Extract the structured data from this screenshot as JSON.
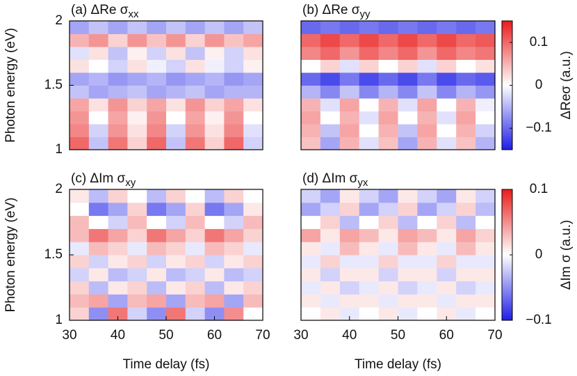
{
  "chart_data": [
    {
      "type": "heatmap",
      "title": "(a) ΔRe σ",
      "title_sub": "xx",
      "ylabel": "Photon energy (eV)",
      "x": [
        32,
        36,
        40,
        44,
        48,
        52,
        56,
        60,
        64,
        68
      ],
      "y": [
        1.05,
        1.15,
        1.25,
        1.35,
        1.45,
        1.55,
        1.65,
        1.75,
        1.85,
        1.95
      ],
      "xlim": [
        30,
        70
      ],
      "ylim": [
        1,
        2
      ],
      "yticks": [
        1,
        1.5,
        2
      ],
      "zlim": [
        -0.15,
        0.15
      ],
      "cmap": [
        "#1e1ee6",
        "#ffffff",
        "#e81c1c"
      ],
      "z": [
        [
          0.1,
          -0.04,
          0.09,
          0.03,
          0.1,
          -0.04,
          0.09,
          0.03,
          0.1,
          -0.03
        ],
        [
          0.08,
          -0.03,
          0.07,
          0.02,
          0.08,
          -0.03,
          0.07,
          0.02,
          0.08,
          -0.02
        ],
        [
          0.07,
          0,
          0.06,
          0.01,
          0.07,
          0,
          0.06,
          0.01,
          0.07,
          0
        ],
        [
          0.06,
          0.02,
          0.07,
          0.03,
          0.06,
          0.02,
          0.07,
          0.03,
          0.06,
          0.02
        ],
        [
          -0.04,
          -0.06,
          -0.05,
          -0.04,
          -0.06,
          -0.05,
          -0.04,
          -0.06,
          -0.05,
          -0.05
        ],
        [
          -0.06,
          -0.05,
          -0.07,
          -0.06,
          -0.05,
          -0.07,
          -0.06,
          -0.05,
          -0.07,
          -0.06
        ],
        [
          0.02,
          0,
          -0.03,
          0.02,
          -0.01,
          -0.03,
          0.02,
          -0.01,
          -0.03,
          0.01
        ],
        [
          -0.02,
          0.02,
          -0.04,
          0.01,
          -0.03,
          0.02,
          -0.04,
          0.01,
          -0.03,
          0.02
        ],
        [
          0.05,
          0.07,
          0.03,
          0.07,
          0.04,
          0.07,
          0.03,
          0.07,
          0.04,
          0.06
        ],
        [
          -0.06,
          -0.04,
          -0.06,
          -0.04,
          -0.06,
          -0.04,
          -0.06,
          -0.04,
          -0.06,
          -0.04
        ]
      ]
    },
    {
      "type": "heatmap",
      "title": "(b) ΔRe σ",
      "title_sub": "yy",
      "x": [
        32,
        36,
        40,
        44,
        48,
        52,
        56,
        60,
        64,
        68
      ],
      "y": [
        1.05,
        1.15,
        1.25,
        1.35,
        1.45,
        1.55,
        1.65,
        1.75,
        1.85,
        1.95
      ],
      "xlim": [
        30,
        70
      ],
      "ylim": [
        1,
        2
      ],
      "zlim": [
        -0.15,
        0.15
      ],
      "cmap": [
        "#1e1ee6",
        "#ffffff",
        "#e81c1c"
      ],
      "colorbar": {
        "label": "ΔReσ (a.u.)",
        "ticks": [
          {
            "value": -0.1,
            "label": "−0.1"
          },
          0,
          0.1
        ]
      },
      "z": [
        [
          0.04,
          -0.06,
          0.05,
          -0.02,
          0.04,
          -0.06,
          0.05,
          -0.02,
          0.04,
          -0.05
        ],
        [
          0.05,
          -0.04,
          0.06,
          0,
          0.05,
          -0.04,
          0.06,
          0,
          0.05,
          -0.03
        ],
        [
          0.06,
          0,
          0.05,
          -0.02,
          0.06,
          0,
          0.05,
          -0.02,
          0.06,
          0
        ],
        [
          0.05,
          -0.02,
          0.06,
          0,
          0.05,
          -0.02,
          0.06,
          0,
          0.05,
          -0.01
        ],
        [
          -0.05,
          -0.08,
          -0.04,
          -0.08,
          -0.05,
          -0.08,
          -0.04,
          -0.08,
          -0.05,
          -0.07
        ],
        [
          -0.1,
          -0.12,
          -0.09,
          -0.12,
          -0.1,
          -0.12,
          -0.09,
          -0.12,
          -0.1,
          -0.11
        ],
        [
          0,
          0.03,
          -0.02,
          0.03,
          0,
          0.03,
          -0.02,
          0.03,
          0,
          0.02
        ],
        [
          0.08,
          0.1,
          0.07,
          0.1,
          0.08,
          0.1,
          0.07,
          0.1,
          0.08,
          0.09
        ],
        [
          0.1,
          0.12,
          0.1,
          0.12,
          0.1,
          0.12,
          0.1,
          0.12,
          0.1,
          0.11
        ],
        [
          -0.1,
          -0.09,
          -0.1,
          -0.09,
          -0.1,
          -0.09,
          -0.1,
          -0.09,
          -0.1,
          -0.09
        ]
      ]
    },
    {
      "type": "heatmap",
      "title": "(c) ΔIm σ",
      "title_sub": "xy",
      "ylabel": "Photon energy (eV)",
      "xlabel": "Time delay (fs)",
      "x": [
        32,
        36,
        40,
        44,
        48,
        52,
        56,
        60,
        64,
        68
      ],
      "y": [
        1.05,
        1.15,
        1.25,
        1.35,
        1.45,
        1.55,
        1.65,
        1.75,
        1.85,
        1.95
      ],
      "xlim": [
        30,
        70
      ],
      "ylim": [
        1,
        2
      ],
      "xticks": [
        30,
        40,
        50,
        60,
        70
      ],
      "yticks": [
        1,
        1.5,
        2
      ],
      "zlim": [
        -0.1,
        0.1
      ],
      "cmap": [
        "#1e1ee6",
        "#ffffff",
        "#e81c1c"
      ],
      "z": [
        [
          0.02,
          -0.05,
          0.06,
          -0.02,
          -0.05,
          0.06,
          -0.02,
          -0.05,
          0.05,
          0
        ],
        [
          0.03,
          0.04,
          -0.04,
          0.03,
          0.04,
          -0.04,
          0.03,
          0.04,
          -0.04,
          0.03
        ],
        [
          0.02,
          -0.03,
          0.01,
          0.02,
          -0.03,
          0.01,
          0.02,
          -0.03,
          0.01,
          0.02
        ],
        [
          -0.02,
          0.01,
          -0.03,
          -0.02,
          0.01,
          -0.03,
          -0.02,
          0.01,
          -0.03,
          -0.02
        ],
        [
          0.02,
          -0.02,
          0.01,
          0.02,
          -0.02,
          0.01,
          0.02,
          -0.02,
          0.01,
          0.02
        ],
        [
          -0.01,
          0.03,
          0.02,
          -0.01,
          0.03,
          0.02,
          -0.01,
          0.03,
          0.02,
          -0.01
        ],
        [
          0.03,
          0.06,
          0.04,
          0.02,
          0.06,
          0.04,
          0.02,
          0.06,
          0.04,
          0.02
        ],
        [
          0.03,
          0,
          -0.02,
          0.03,
          0,
          -0.02,
          0.03,
          0,
          -0.02,
          0.03
        ],
        [
          0,
          -0.06,
          -0.04,
          0.02,
          -0.06,
          -0.04,
          0.02,
          -0.06,
          -0.04,
          0.01
        ],
        [
          0.01,
          -0.03,
          0.02,
          0,
          -0.03,
          0.02,
          0,
          -0.03,
          0.02,
          0
        ]
      ]
    },
    {
      "type": "heatmap",
      "title": "(d) ΔIm σ",
      "title_sub": "yx",
      "xlabel": "Time delay (fs)",
      "x": [
        32,
        36,
        40,
        44,
        48,
        52,
        56,
        60,
        64,
        68
      ],
      "y": [
        1.05,
        1.15,
        1.25,
        1.35,
        1.45,
        1.55,
        1.65,
        1.75,
        1.85,
        1.95
      ],
      "xlim": [
        30,
        70
      ],
      "ylim": [
        1,
        2
      ],
      "xticks": [
        30,
        40,
        50,
        60,
        70
      ],
      "zlim": [
        -0.1,
        0.1
      ],
      "cmap": [
        "#1e1ee6",
        "#ffffff",
        "#e81c1c"
      ],
      "colorbar": {
        "label": "ΔIm σ (a.u.)",
        "ticks": [
          {
            "value": -0.1,
            "label": "−0.1"
          },
          0,
          0.1
        ]
      },
      "z": [
        [
          0,
          0.01,
          -0.01,
          0,
          0.01,
          -0.01,
          0,
          0.01,
          -0.01,
          0
        ],
        [
          0.01,
          -0.01,
          0.01,
          0.01,
          -0.01,
          0.01,
          0.01,
          -0.01,
          0.01,
          0.01
        ],
        [
          -0.01,
          0.01,
          -0.02,
          -0.01,
          0.01,
          -0.02,
          -0.01,
          0.01,
          -0.02,
          -0.01
        ],
        [
          0.01,
          -0.02,
          0.01,
          0.01,
          -0.02,
          0.01,
          0.01,
          -0.02,
          0.01,
          0.01
        ],
        [
          -0.01,
          0.02,
          -0.01,
          -0.01,
          0.02,
          -0.01,
          -0.01,
          0.02,
          -0.01,
          -0.01
        ],
        [
          0.01,
          -0.01,
          0.03,
          0.01,
          -0.01,
          0.03,
          0.01,
          -0.01,
          0.03,
          0.01
        ],
        [
          0.04,
          0.01,
          0.04,
          0.03,
          0.01,
          0.04,
          0.03,
          0.01,
          0.04,
          0.02
        ],
        [
          0,
          0.02,
          -0.03,
          0,
          0.02,
          -0.03,
          0,
          0.02,
          -0.03,
          0
        ],
        [
          -0.04,
          -0.02,
          0.02,
          -0.04,
          -0.02,
          0.02,
          -0.04,
          -0.02,
          0.02,
          -0.03
        ],
        [
          -0.02,
          -0.04,
          0.01,
          -0.02,
          -0.04,
          0.01,
          -0.02,
          -0.04,
          0.01,
          -0.02
        ]
      ]
    }
  ]
}
